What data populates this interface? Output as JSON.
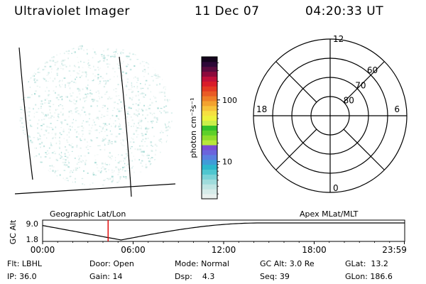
{
  "header": {
    "instrument": "Ultraviolet Imager",
    "date": "11 Dec 07",
    "time": "04:20:33 UT"
  },
  "colorbar": {
    "unit_label": "photon cm⁻²s⁻¹",
    "ticks": [
      {
        "label": "100",
        "value": 100
      },
      {
        "label": "10",
        "value": 10
      }
    ],
    "scale": "log",
    "colors": [
      "#e9f0ee",
      "#d6ebe9",
      "#bfe5e3",
      "#9fdcdc",
      "#7ad2d6",
      "#4fc6cf",
      "#2db7cc",
      "#3f9cd8",
      "#5a80e0",
      "#6b64dc",
      "#7a4bd4",
      "#b8e63a",
      "#8edc2c",
      "#5dd02a",
      "#33c02a",
      "#c9ef4a",
      "#ecf23c",
      "#f6e040",
      "#f6c23a",
      "#f3a22f",
      "#ee7f27",
      "#e95b25",
      "#e33a22",
      "#d91c2a",
      "#c0103a",
      "#8c0a3c",
      "#5a0a3e",
      "#2d0838",
      "#14041c"
    ]
  },
  "polar": {
    "mlt_labels": [
      {
        "label": "12",
        "angle": 0
      },
      {
        "label": "6",
        "angle": 90
      },
      {
        "label": "0",
        "angle": 180
      },
      {
        "label": "18",
        "angle": 270
      }
    ],
    "lat_labels": [
      {
        "label": "60",
        "lat": 60
      },
      {
        "label": "70",
        "lat": 70
      },
      {
        "label": "80",
        "lat": 80
      }
    ]
  },
  "timeline": {
    "left_label": "Geographic Lat/Lon",
    "right_label": "Apex MLat/MLT",
    "axis_title": "GC Alt",
    "y_ticks": [
      "9.0",
      "1.8"
    ],
    "x_ticks": [
      "00:00",
      "06:00",
      "12:00",
      "18:00",
      "23:59"
    ],
    "marker_hour": 4.342,
    "marker_color": "#e00000"
  },
  "info": {
    "flt": "Flt: LBHL",
    "ip": "IP: 36.0",
    "door": "Door: Open",
    "gain": "Gain: 14",
    "mode": "Mode: Normal",
    "dsp": "Dsp:    4.3",
    "gcalt": "GC Alt: 3.0 Re",
    "seq": "Seq: 39",
    "glat": "GLat:  13.2",
    "glon": "GLon: 186.6"
  }
}
